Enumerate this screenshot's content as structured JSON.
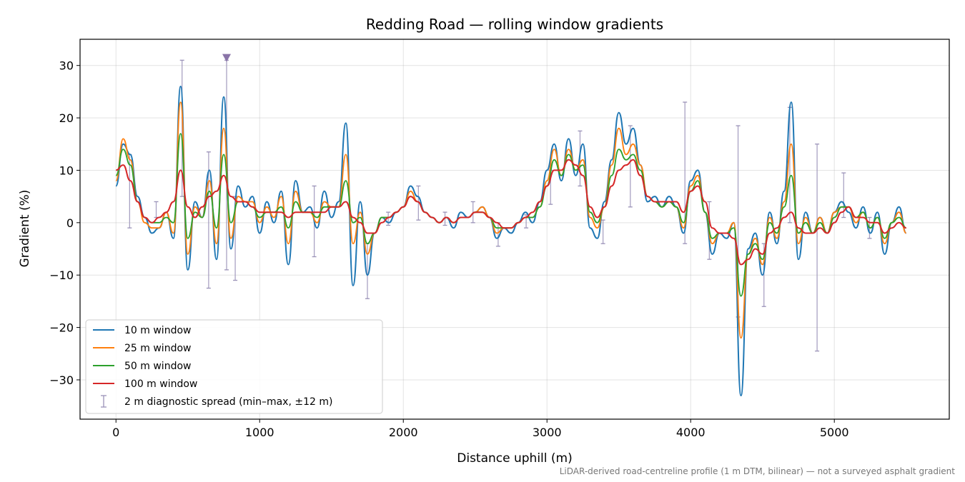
{
  "chart_data": {
    "type": "line",
    "title": "Redding Road — rolling window gradients",
    "xlabel": "Distance uphill (m)",
    "ylabel": "Gradient (%)",
    "xlim": [
      -250,
      5800
    ],
    "ylim": [
      -37.5,
      35
    ],
    "xticks": [
      0,
      1000,
      2000,
      3000,
      4000,
      5000
    ],
    "xtick_labels": [
      "0",
      "1000",
      "2000",
      "3000",
      "4000",
      "5000"
    ],
    "yticks": [
      -30,
      -20,
      -10,
      0,
      10,
      20,
      30
    ],
    "ytick_labels": [
      "−30",
      "−20",
      "−10",
      "0",
      "10",
      "20",
      "30"
    ],
    "grid": true,
    "legend_position": "lower-left",
    "footnote": "LiDAR-derived road-centreline profile (1 m DTM, bilinear) — not a surveyed asphalt gradient",
    "x": [
      0,
      50,
      100,
      150,
      200,
      250,
      300,
      350,
      400,
      450,
      500,
      550,
      600,
      650,
      700,
      750,
      800,
      850,
      900,
      950,
      1000,
      1050,
      1100,
      1150,
      1200,
      1250,
      1300,
      1350,
      1400,
      1450,
      1500,
      1550,
      1600,
      1650,
      1700,
      1750,
      1800,
      1850,
      1900,
      1950,
      2000,
      2050,
      2100,
      2150,
      2200,
      2250,
      2300,
      2350,
      2400,
      2450,
      2500,
      2550,
      2600,
      2650,
      2700,
      2750,
      2800,
      2850,
      2900,
      2950,
      3000,
      3050,
      3100,
      3150,
      3200,
      3250,
      3300,
      3350,
      3400,
      3450,
      3500,
      3550,
      3600,
      3650,
      3700,
      3750,
      3800,
      3850,
      3900,
      3950,
      4000,
      4050,
      4100,
      4150,
      4200,
      4250,
      4300,
      4350,
      4400,
      4450,
      4500,
      4550,
      4600,
      4650,
      4700,
      4750,
      4800,
      4850,
      4900,
      4950,
      5000,
      5050,
      5100,
      5150,
      5200,
      5250,
      5300,
      5350,
      5400,
      5450,
      5500
    ],
    "series": [
      {
        "name": "10 m window",
        "color": "#1f77b4",
        "width": 2.0,
        "values": [
          7,
          15,
          13,
          5,
          1,
          -2,
          -1,
          2,
          -3,
          26,
          -9,
          4,
          1,
          10,
          -7,
          24,
          -5,
          7,
          3,
          5,
          -2,
          4,
          0,
          6,
          -8,
          8,
          2,
          3,
          -1,
          6,
          1,
          4,
          19,
          -12,
          4,
          -10,
          -2,
          1,
          0,
          2,
          3,
          7,
          5,
          2,
          1,
          0,
          1,
          -1,
          2,
          1,
          2,
          3,
          1,
          -3,
          -1,
          -2,
          0,
          2,
          0,
          4,
          10,
          15,
          8,
          16,
          9,
          15,
          -1,
          -3,
          4,
          12,
          21,
          15,
          18,
          11,
          4,
          5,
          3,
          5,
          3,
          -2,
          8,
          10,
          2,
          -6,
          -2,
          -3,
          0,
          -33,
          -5,
          -2,
          -10,
          2,
          -4,
          6,
          23,
          -7,
          2,
          -2,
          1,
          -2,
          2,
          4,
          2,
          -1,
          3,
          -2,
          2,
          -6,
          0,
          3,
          -2
        ]
      },
      {
        "name": "25 m window",
        "color": "#ff7f0e",
        "width": 1.8,
        "values": [
          8,
          16,
          12,
          4,
          0,
          -1,
          -1,
          2,
          -2,
          23,
          -6,
          3,
          1,
          8,
          -4,
          18,
          -3,
          5,
          4,
          4,
          0,
          3,
          1,
          5,
          -4,
          6,
          2,
          2,
          0,
          4,
          3,
          3,
          13,
          -4,
          2,
          -6,
          -2,
          1,
          1,
          2,
          3,
          6,
          4,
          2,
          1,
          0,
          1,
          0,
          1,
          1,
          2,
          3,
          1,
          -2,
          -1,
          -1,
          0,
          1,
          1,
          3,
          8,
          14,
          9,
          14,
          10,
          12,
          1,
          -1,
          3,
          11,
          18,
          13,
          15,
          11,
          5,
          4,
          3,
          4,
          3,
          -1,
          7,
          9,
          2,
          -4,
          -2,
          -2,
          0,
          -22,
          -6,
          -3,
          -8,
          1,
          -3,
          4,
          15,
          -4,
          1,
          -2,
          1,
          -2,
          2,
          3,
          3,
          0,
          2,
          -1,
          1,
          -4,
          0,
          2,
          -2
        ]
      },
      {
        "name": "50 m window",
        "color": "#2ca02c",
        "width": 1.8,
        "values": [
          9,
          14,
          11,
          4,
          1,
          0,
          0,
          1,
          0,
          17,
          -3,
          2,
          1,
          6,
          -1,
          13,
          0,
          4,
          4,
          3,
          1,
          2,
          2,
          3,
          -1,
          4,
          2,
          2,
          1,
          3,
          3,
          3,
          8,
          0,
          1,
          -4,
          -2,
          1,
          1,
          2,
          3,
          5,
          4,
          2,
          1,
          0,
          1,
          0,
          1,
          1,
          2,
          2,
          1,
          -1,
          -1,
          -1,
          0,
          1,
          1,
          3,
          7,
          12,
          9,
          13,
          10,
          11,
          2,
          0,
          3,
          9,
          14,
          12,
          13,
          10,
          5,
          4,
          3,
          4,
          3,
          0,
          6,
          8,
          2,
          -3,
          -2,
          -2,
          -1,
          -14,
          -6,
          -4,
          -7,
          0,
          -2,
          3,
          9,
          -2,
          0,
          -2,
          0,
          -2,
          1,
          3,
          3,
          1,
          2,
          -1,
          1,
          -3,
          0,
          1,
          -1
        ]
      },
      {
        "name": "100 m window",
        "color": "#d62728",
        "width": 2.0,
        "values": [
          10,
          11,
          8,
          4,
          1,
          0,
          1,
          2,
          4,
          10,
          3,
          1,
          3,
          5,
          6,
          9,
          5,
          4,
          4,
          3,
          2,
          2,
          2,
          2,
          1,
          2,
          2,
          2,
          2,
          2,
          3,
          3,
          4,
          1,
          0,
          -2,
          -2,
          0,
          1,
          2,
          3,
          5,
          4,
          2,
          1,
          0,
          1,
          0,
          1,
          1,
          2,
          2,
          1,
          0,
          -1,
          -1,
          0,
          1,
          2,
          4,
          7,
          10,
          10,
          12,
          11,
          9,
          3,
          1,
          3,
          7,
          10,
          11,
          12,
          9,
          5,
          4,
          4,
          4,
          4,
          2,
          6,
          7,
          4,
          -1,
          -2,
          -2,
          -3,
          -8,
          -7,
          -5,
          -6,
          -2,
          -1,
          1,
          2,
          -1,
          -2,
          -2,
          -1,
          -2,
          0,
          2,
          3,
          1,
          1,
          0,
          0,
          -2,
          -1,
          0,
          -1
        ]
      }
    ],
    "errorbars": {
      "name": "2 m diagnostic spread (min–max, ±12 m)",
      "color": "#9a92b8",
      "points": [
        {
          "x": 95,
          "low": -1,
          "high": 13
        },
        {
          "x": 280,
          "low": 1,
          "high": 4
        },
        {
          "x": 460,
          "low": 5,
          "high": 31
        },
        {
          "x": 645,
          "low": -12.5,
          "high": 13.5
        },
        {
          "x": 770,
          "low": -9,
          "high": 31
        },
        {
          "x": 830,
          "low": -11,
          "high": 5
        },
        {
          "x": 1380,
          "low": -6.5,
          "high": 7
        },
        {
          "x": 1750,
          "low": -14.5,
          "high": -4
        },
        {
          "x": 1895,
          "low": -0.5,
          "high": 2
        },
        {
          "x": 2105,
          "low": 0.5,
          "high": 7
        },
        {
          "x": 2290,
          "low": -0.5,
          "high": 2
        },
        {
          "x": 2485,
          "low": 0,
          "high": 4
        },
        {
          "x": 2660,
          "low": -4.5,
          "high": 0
        },
        {
          "x": 2855,
          "low": -1,
          "high": 1.5
        },
        {
          "x": 3025,
          "low": 3.5,
          "high": 10
        },
        {
          "x": 3230,
          "low": 7,
          "high": 17.5
        },
        {
          "x": 3390,
          "low": -4,
          "high": 0.5
        },
        {
          "x": 3580,
          "low": 3,
          "high": 18.5
        },
        {
          "x": 3960,
          "low": -4,
          "high": 23
        },
        {
          "x": 4130,
          "low": -7,
          "high": 4
        },
        {
          "x": 4330,
          "low": -18,
          "high": 18.5
        },
        {
          "x": 4510,
          "low": -16,
          "high": -4
        },
        {
          "x": 4690,
          "low": 0,
          "high": 22
        },
        {
          "x": 4880,
          "low": -24.5,
          "high": 15
        },
        {
          "x": 5065,
          "low": 1,
          "high": 9.5
        },
        {
          "x": 5245,
          "low": -3,
          "high": 1
        }
      ],
      "clip_marker": {
        "x": 770,
        "y": 31.5
      }
    }
  }
}
